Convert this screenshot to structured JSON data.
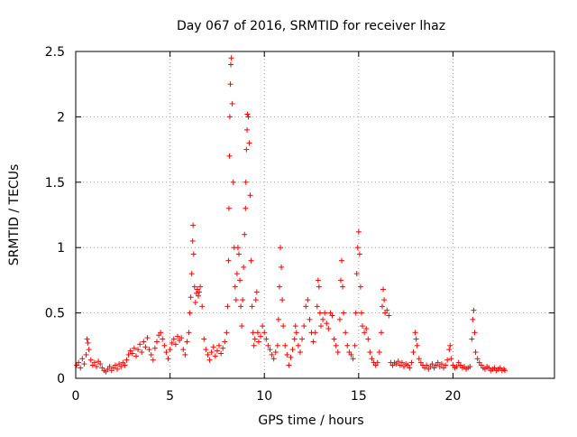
{
  "chart_data": {
    "type": "scatter",
    "title": "Day 067 of 2016, SRMTID for receiver lhaz",
    "xlabel": "GPS time / hours",
    "ylabel": "SRMTID / TECUs",
    "xlim": [
      0,
      25.38
    ],
    "ylim": [
      0,
      2.5
    ],
    "grid": true,
    "x_ticks": [
      {
        "value": 0,
        "label": "0"
      },
      {
        "value": 5,
        "label": "5"
      },
      {
        "value": 10,
        "label": "10"
      },
      {
        "value": 15,
        "label": "15"
      },
      {
        "value": 20,
        "label": "20"
      }
    ],
    "y_ticks": [
      {
        "value": 0,
        "label": "0"
      },
      {
        "value": 0.5,
        "label": "0.5"
      },
      {
        "value": 1,
        "label": "1"
      },
      {
        "value": 1.5,
        "label": "1.5"
      },
      {
        "value": 2,
        "label": "2"
      },
      {
        "value": 2.5,
        "label": "2.5"
      }
    ],
    "marker": "+",
    "color": "#ff0000",
    "series": [
      {
        "name": "lhaz",
        "points": [
          [
            0.05,
            0.1
          ],
          [
            0.15,
            0.12
          ],
          [
            0.25,
            0.08
          ],
          [
            0.35,
            0.15
          ],
          [
            0.45,
            0.11
          ],
          [
            0.55,
            0.18
          ],
          [
            0.6,
            0.3
          ],
          [
            0.65,
            0.27
          ],
          [
            0.7,
            0.22
          ],
          [
            0.8,
            0.14
          ],
          [
            0.9,
            0.1
          ],
          [
            1.0,
            0.12
          ],
          [
            1.1,
            0.09
          ],
          [
            1.2,
            0.13
          ],
          [
            1.3,
            0.11
          ],
          [
            1.4,
            0.08
          ],
          [
            1.5,
            0.06
          ],
          [
            1.6,
            0.05
          ],
          [
            1.7,
            0.07
          ],
          [
            1.8,
            0.09
          ],
          [
            1.9,
            0.06
          ],
          [
            2.0,
            0.08
          ],
          [
            2.1,
            0.1
          ],
          [
            2.2,
            0.07
          ],
          [
            2.3,
            0.11
          ],
          [
            2.4,
            0.09
          ],
          [
            2.5,
            0.12
          ],
          [
            2.6,
            0.1
          ],
          [
            2.7,
            0.14
          ],
          [
            2.8,
            0.18
          ],
          [
            2.9,
            0.21
          ],
          [
            3.0,
            0.19
          ],
          [
            3.1,
            0.23
          ],
          [
            3.2,
            0.17
          ],
          [
            3.3,
            0.22
          ],
          [
            3.4,
            0.26
          ],
          [
            3.5,
            0.2
          ],
          [
            3.6,
            0.28
          ],
          [
            3.7,
            0.24
          ],
          [
            3.8,
            0.31
          ],
          [
            3.9,
            0.22
          ],
          [
            4.0,
            0.18
          ],
          [
            4.1,
            0.14
          ],
          [
            4.2,
            0.23
          ],
          [
            4.3,
            0.28
          ],
          [
            4.4,
            0.33
          ],
          [
            4.5,
            0.35
          ],
          [
            4.6,
            0.3
          ],
          [
            4.7,
            0.25
          ],
          [
            4.8,
            0.2
          ],
          [
            4.9,
            0.15
          ],
          [
            5.0,
            0.22
          ],
          [
            5.1,
            0.27
          ],
          [
            5.2,
            0.3
          ],
          [
            5.3,
            0.26
          ],
          [
            5.4,
            0.32
          ],
          [
            5.5,
            0.29
          ],
          [
            5.6,
            0.31
          ],
          [
            5.7,
            0.22
          ],
          [
            5.8,
            0.18
          ],
          [
            5.9,
            0.28
          ],
          [
            6.0,
            0.35
          ],
          [
            6.05,
            0.5
          ],
          [
            6.1,
            0.62
          ],
          [
            6.15,
            0.8
          ],
          [
            6.2,
            1.05
          ],
          [
            6.22,
            1.17
          ],
          [
            6.25,
            0.95
          ],
          [
            6.3,
            0.7
          ],
          [
            6.35,
            0.58
          ],
          [
            6.4,
            0.65
          ],
          [
            6.45,
            0.68
          ],
          [
            6.5,
            0.63
          ],
          [
            6.55,
            0.66
          ],
          [
            6.6,
            0.7
          ],
          [
            6.7,
            0.55
          ],
          [
            6.8,
            0.3
          ],
          [
            6.9,
            0.22
          ],
          [
            7.0,
            0.18
          ],
          [
            7.1,
            0.14
          ],
          [
            7.2,
            0.2
          ],
          [
            7.3,
            0.24
          ],
          [
            7.4,
            0.17
          ],
          [
            7.5,
            0.21
          ],
          [
            7.6,
            0.25
          ],
          [
            7.7,
            0.19
          ],
          [
            7.8,
            0.23
          ],
          [
            7.9,
            0.28
          ],
          [
            8.0,
            0.35
          ],
          [
            8.05,
            0.55
          ],
          [
            8.1,
            0.9
          ],
          [
            8.12,
            1.3
          ],
          [
            8.15,
            1.7
          ],
          [
            8.17,
            2.0
          ],
          [
            8.2,
            2.25
          ],
          [
            8.22,
            2.4
          ],
          [
            8.25,
            2.45
          ],
          [
            8.3,
            2.1
          ],
          [
            8.35,
            1.5
          ],
          [
            8.4,
            1.0
          ],
          [
            8.45,
            0.7
          ],
          [
            8.5,
            0.6
          ],
          [
            8.55,
            0.8
          ],
          [
            8.6,
            1.0
          ],
          [
            8.65,
            0.95
          ],
          [
            8.7,
            0.75
          ],
          [
            8.75,
            0.55
          ],
          [
            8.8,
            0.4
          ],
          [
            8.85,
            0.6
          ],
          [
            8.9,
            0.85
          ],
          [
            8.95,
            1.1
          ],
          [
            9.0,
            1.3
          ],
          [
            9.02,
            1.5
          ],
          [
            9.05,
            1.75
          ],
          [
            9.08,
            1.9
          ],
          [
            9.1,
            2.02
          ],
          [
            9.15,
            2.0
          ],
          [
            9.2,
            1.8
          ],
          [
            9.25,
            1.4
          ],
          [
            9.3,
            0.9
          ],
          [
            9.35,
            0.55
          ],
          [
            9.4,
            0.35
          ],
          [
            9.45,
            0.25
          ],
          [
            9.5,
            0.3
          ],
          [
            9.55,
            0.6
          ],
          [
            9.6,
            0.66
          ],
          [
            9.65,
            0.35
          ],
          [
            9.7,
            0.28
          ],
          [
            9.8,
            0.32
          ],
          [
            9.9,
            0.4
          ],
          [
            10.0,
            0.35
          ],
          [
            10.1,
            0.3
          ],
          [
            10.2,
            0.25
          ],
          [
            10.3,
            0.22
          ],
          [
            10.4,
            0.18
          ],
          [
            10.5,
            0.15
          ],
          [
            10.6,
            0.2
          ],
          [
            10.7,
            0.25
          ],
          [
            10.75,
            0.45
          ],
          [
            10.8,
            0.7
          ],
          [
            10.85,
            1.0
          ],
          [
            10.9,
            0.85
          ],
          [
            10.95,
            0.6
          ],
          [
            11.0,
            0.4
          ],
          [
            11.1,
            0.25
          ],
          [
            11.2,
            0.18
          ],
          [
            11.3,
            0.1
          ],
          [
            11.4,
            0.16
          ],
          [
            11.5,
            0.22
          ],
          [
            11.6,
            0.3
          ],
          [
            11.65,
            0.4
          ],
          [
            11.7,
            0.35
          ],
          [
            11.8,
            0.25
          ],
          [
            11.9,
            0.2
          ],
          [
            12.0,
            0.3
          ],
          [
            12.1,
            0.4
          ],
          [
            12.2,
            0.55
          ],
          [
            12.3,
            0.6
          ],
          [
            12.4,
            0.45
          ],
          [
            12.5,
            0.35
          ],
          [
            12.6,
            0.28
          ],
          [
            12.7,
            0.35
          ],
          [
            12.8,
            0.55
          ],
          [
            12.85,
            0.75
          ],
          [
            12.9,
            0.7
          ],
          [
            12.95,
            0.5
          ],
          [
            13.0,
            0.4
          ],
          [
            13.1,
            0.45
          ],
          [
            13.2,
            0.5
          ],
          [
            13.3,
            0.42
          ],
          [
            13.4,
            0.38
          ],
          [
            13.5,
            0.5
          ],
          [
            13.6,
            0.48
          ],
          [
            13.7,
            0.3
          ],
          [
            13.8,
            0.25
          ],
          [
            13.9,
            0.2
          ],
          [
            14.0,
            0.45
          ],
          [
            14.05,
            0.75
          ],
          [
            14.1,
            0.9
          ],
          [
            14.15,
            0.7
          ],
          [
            14.2,
            0.5
          ],
          [
            14.3,
            0.35
          ],
          [
            14.4,
            0.25
          ],
          [
            14.5,
            0.2
          ],
          [
            14.6,
            0.18
          ],
          [
            14.7,
            0.15
          ],
          [
            14.8,
            0.25
          ],
          [
            14.85,
            0.5
          ],
          [
            14.9,
            0.8
          ],
          [
            14.95,
            1.0
          ],
          [
            15.0,
            1.12
          ],
          [
            15.05,
            0.95
          ],
          [
            15.1,
            0.7
          ],
          [
            15.15,
            0.5
          ],
          [
            15.2,
            0.4
          ],
          [
            15.3,
            0.35
          ],
          [
            15.4,
            0.38
          ],
          [
            15.5,
            0.3
          ],
          [
            15.6,
            0.2
          ],
          [
            15.7,
            0.15
          ],
          [
            15.8,
            0.12
          ],
          [
            15.9,
            0.1
          ],
          [
            16.0,
            0.12
          ],
          [
            16.1,
            0.2
          ],
          [
            16.2,
            0.35
          ],
          [
            16.25,
            0.55
          ],
          [
            16.3,
            0.68
          ],
          [
            16.35,
            0.6
          ],
          [
            16.4,
            0.5
          ],
          [
            16.5,
            0.52
          ],
          [
            16.6,
            0.48
          ],
          [
            16.7,
            0.12
          ],
          [
            16.8,
            0.1
          ],
          [
            16.9,
            0.12
          ],
          [
            17.0,
            0.11
          ],
          [
            17.1,
            0.13
          ],
          [
            17.2,
            0.1
          ],
          [
            17.3,
            0.12
          ],
          [
            17.4,
            0.09
          ],
          [
            17.5,
            0.11
          ],
          [
            17.6,
            0.1
          ],
          [
            17.7,
            0.08
          ],
          [
            17.8,
            0.12
          ],
          [
            17.9,
            0.2
          ],
          [
            18.0,
            0.35
          ],
          [
            18.05,
            0.3
          ],
          [
            18.1,
            0.25
          ],
          [
            18.2,
            0.15
          ],
          [
            18.3,
            0.12
          ],
          [
            18.4,
            0.1
          ],
          [
            18.5,
            0.08
          ],
          [
            18.6,
            0.1
          ],
          [
            18.7,
            0.07
          ],
          [
            18.8,
            0.09
          ],
          [
            18.9,
            0.11
          ],
          [
            19.0,
            0.08
          ],
          [
            19.1,
            0.1
          ],
          [
            19.2,
            0.12
          ],
          [
            19.3,
            0.09
          ],
          [
            19.4,
            0.11
          ],
          [
            19.5,
            0.08
          ],
          [
            19.6,
            0.1
          ],
          [
            19.7,
            0.14
          ],
          [
            19.8,
            0.22
          ],
          [
            19.85,
            0.25
          ],
          [
            19.9,
            0.15
          ],
          [
            20.0,
            0.1
          ],
          [
            20.1,
            0.08
          ],
          [
            20.2,
            0.09
          ],
          [
            20.3,
            0.12
          ],
          [
            20.4,
            0.1
          ],
          [
            20.5,
            0.08
          ],
          [
            20.6,
            0.09
          ],
          [
            20.7,
            0.07
          ],
          [
            20.8,
            0.08
          ],
          [
            20.9,
            0.09
          ],
          [
            21.0,
            0.3
          ],
          [
            21.05,
            0.45
          ],
          [
            21.1,
            0.52
          ],
          [
            21.15,
            0.35
          ],
          [
            21.2,
            0.2
          ],
          [
            21.3,
            0.15
          ],
          [
            21.4,
            0.12
          ],
          [
            21.5,
            0.1
          ],
          [
            21.6,
            0.08
          ],
          [
            21.7,
            0.07
          ],
          [
            21.8,
            0.09
          ],
          [
            21.9,
            0.08
          ],
          [
            22.0,
            0.06
          ],
          [
            22.1,
            0.07
          ],
          [
            22.2,
            0.08
          ],
          [
            22.3,
            0.06
          ],
          [
            22.4,
            0.07
          ],
          [
            22.5,
            0.08
          ],
          [
            22.6,
            0.06
          ],
          [
            22.7,
            0.07
          ],
          [
            22.75,
            0.06
          ]
        ]
      }
    ]
  }
}
